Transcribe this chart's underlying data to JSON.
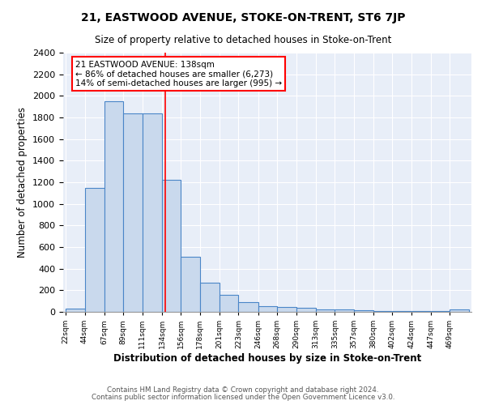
{
  "title": "21, EASTWOOD AVENUE, STOKE-ON-TRENT, ST6 7JP",
  "subtitle": "Size of property relative to detached houses in Stoke-on-Trent",
  "xlabel": "Distribution of detached houses by size in Stoke-on-Trent",
  "ylabel": "Number of detached properties",
  "bin_edges": [
    22,
    44,
    67,
    89,
    111,
    134,
    156,
    178,
    201,
    223,
    246,
    268,
    290,
    313,
    335,
    357,
    380,
    402,
    424,
    447,
    469
  ],
  "bar_heights": [
    30,
    1150,
    1950,
    1840,
    1840,
    1220,
    510,
    270,
    155,
    90,
    50,
    45,
    40,
    20,
    20,
    15,
    10,
    10,
    5,
    5,
    20
  ],
  "bar_color": "#c9d9ed",
  "bar_edge_color": "#4a86c8",
  "red_line_x": 138,
  "annotation_title": "21 EASTWOOD AVENUE: 138sqm",
  "annotation_line1": "← 86% of detached houses are smaller (6,273)",
  "annotation_line2": "14% of semi-detached houses are larger (995) →",
  "ylim": [
    0,
    2400
  ],
  "yticks": [
    0,
    200,
    400,
    600,
    800,
    1000,
    1200,
    1400,
    1600,
    1800,
    2000,
    2200,
    2400
  ],
  "footnote1": "Contains HM Land Registry data © Crown copyright and database right 2024.",
  "footnote2": "Contains public sector information licensed under the Open Government Licence v3.0.",
  "bg_color": "#ffffff",
  "plot_bg_color": "#e8eef8"
}
